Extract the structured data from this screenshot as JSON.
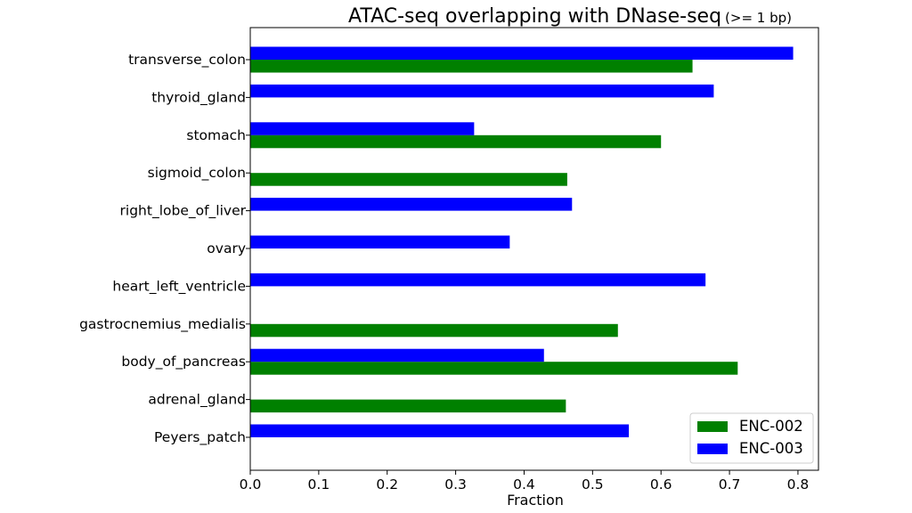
{
  "chart_data": {
    "type": "bar",
    "orientation": "horizontal",
    "title": "ATAC-seq overlapping with DNase-seq",
    "subtitle": "(>= 1 bp)",
    "xlabel": "Fraction",
    "ylabel": "",
    "xlim": [
      0,
      0.83
    ],
    "xticks": [
      "0.0",
      "0.1",
      "0.2",
      "0.3",
      "0.4",
      "0.5",
      "0.6",
      "0.7",
      "0.8"
    ],
    "grid": false,
    "legend_position": "bottom-right",
    "categories": [
      "transverse_colon",
      "thyroid_gland",
      "stomach",
      "sigmoid_colon",
      "right_lobe_of_liver",
      "ovary",
      "heart_left_ventricle",
      "gastrocnemius_medialis",
      "body_of_pancreas",
      "adrenal_gland",
      "Peyers_patch"
    ],
    "series": [
      {
        "name": "ENC-002",
        "color": "#008000",
        "values": [
          0.646,
          null,
          0.6,
          0.463,
          null,
          null,
          null,
          0.537,
          0.712,
          0.461,
          null
        ]
      },
      {
        "name": "ENC-003",
        "color": "#0000ff",
        "values": [
          0.793,
          0.677,
          0.327,
          null,
          0.47,
          0.379,
          0.665,
          null,
          0.429,
          null,
          0.553
        ]
      }
    ]
  }
}
